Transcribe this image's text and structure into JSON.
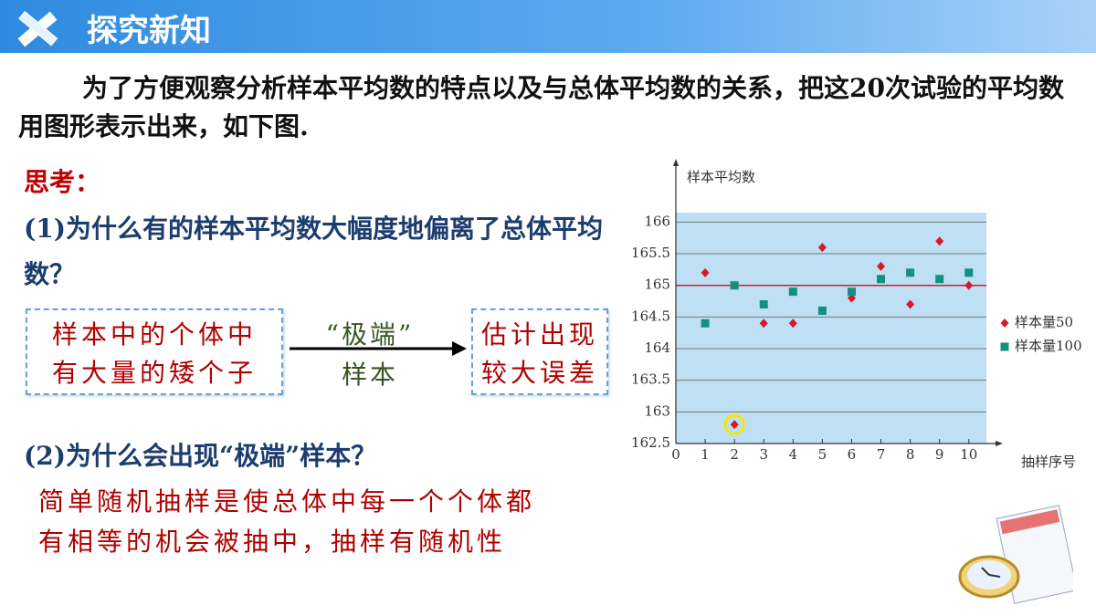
{
  "header": {
    "title": "探究新知"
  },
  "intro": "为了方便观察分析样本平均数的特点以及与总体平均数的关系，把这20次试验的平均数用图形表示出来，如下图.",
  "think": "思考：",
  "q1": "(1)为什么有的样本平均数大幅度地偏离了总体平均数？",
  "cause_box": [
    "样本中的个体中",
    "有大量的矮个子"
  ],
  "arrow_label": [
    "“极端”",
    "样本"
  ],
  "effect_box": [
    "估计出现",
    "较大误差"
  ],
  "q2": "(2)为什么会出现“极端”样本？",
  "answer": [
    "简单随机抽样是使总体中每一个个体都",
    "有相等的机会被抽中，抽样有随机性"
  ],
  "chart_data": {
    "type": "scatter",
    "y_label": "样本平均数",
    "x_label": "抽样序号",
    "x": [
      1,
      2,
      3,
      4,
      5,
      6,
      7,
      8,
      9,
      10
    ],
    "series": [
      {
        "name": "样本量50",
        "color": "#d7192a",
        "marker": "diamond",
        "values": [
          165.2,
          162.8,
          164.4,
          164.4,
          165.6,
          164.8,
          165.3,
          164.7,
          165.7,
          165.0
        ]
      },
      {
        "name": "样本量100",
        "color": "#12917e",
        "marker": "square",
        "values": [
          164.4,
          165.0,
          164.7,
          164.9,
          164.6,
          164.9,
          165.1,
          165.2,
          165.1,
          165.2
        ]
      }
    ],
    "reference_line": 165,
    "xlim": [
      0,
      10.6
    ],
    "xticks": [
      0,
      1,
      2,
      3,
      4,
      5,
      6,
      7,
      8,
      9,
      10
    ],
    "ylim": [
      162.5,
      166.15
    ],
    "yticks": [
      162.5,
      163,
      163.5,
      164,
      164.5,
      165,
      165.5,
      166
    ],
    "grid": true
  }
}
